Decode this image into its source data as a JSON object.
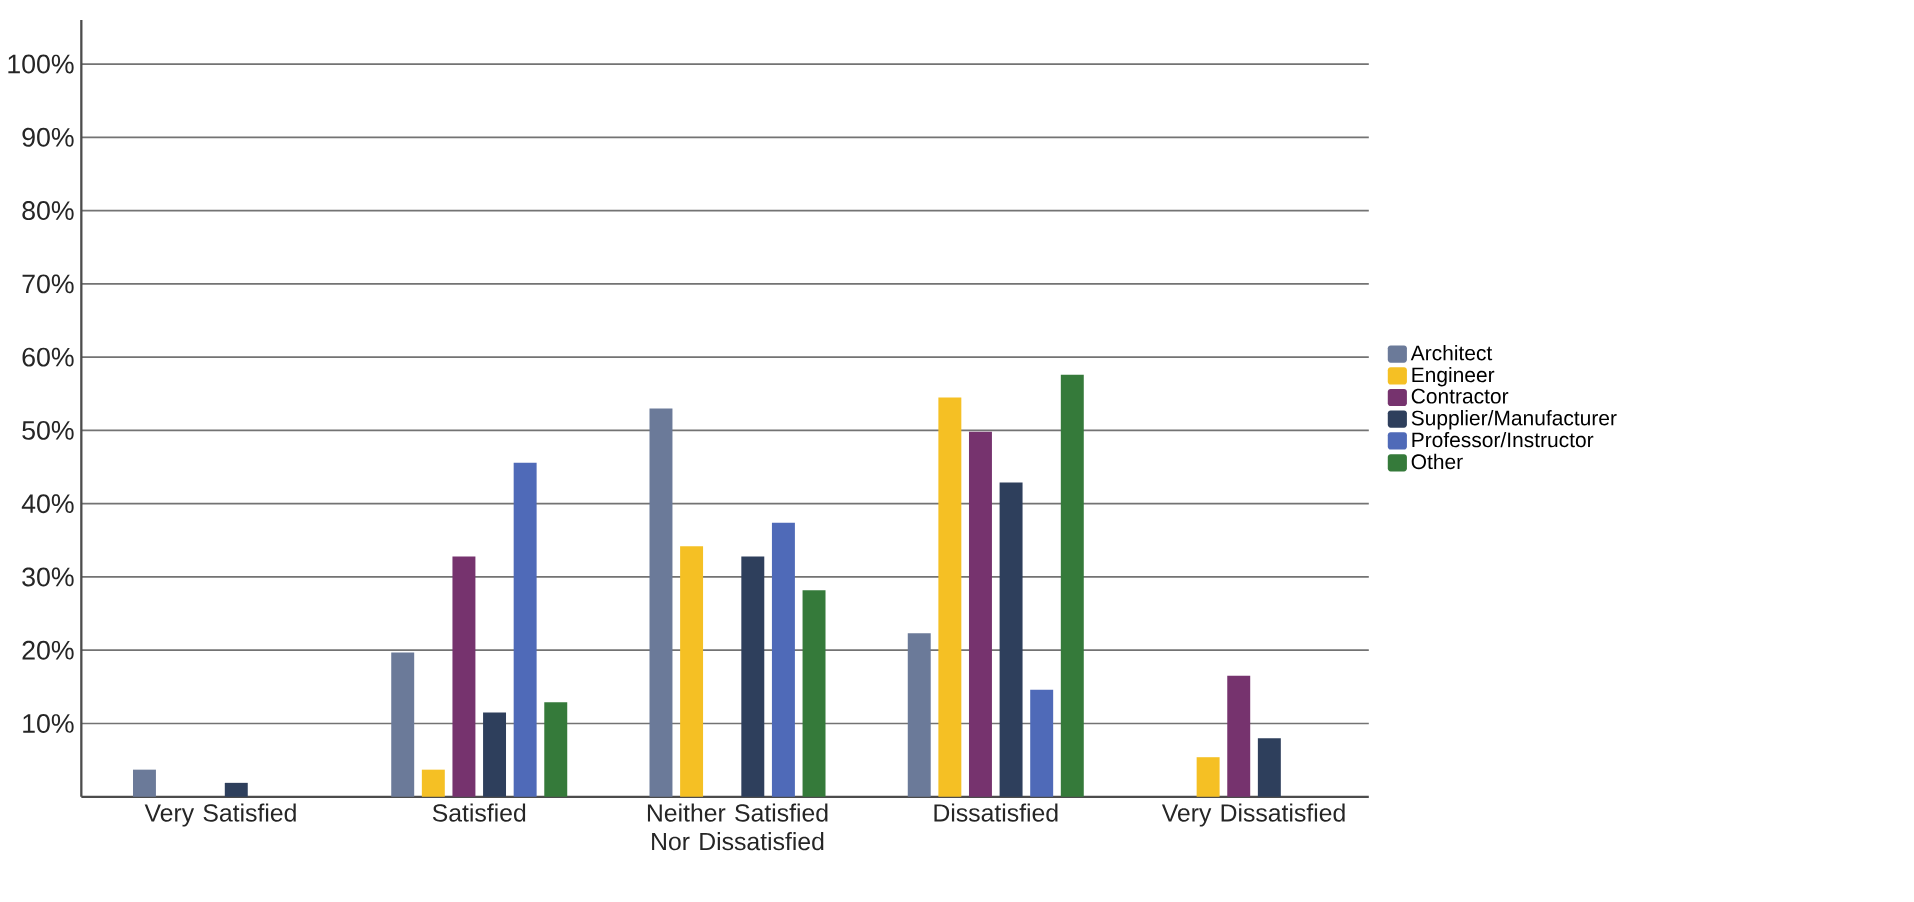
{
  "chart_data": {
    "type": "bar",
    "categories": [
      "Very Satisfied",
      "Satisfied",
      "Neither Satisfied Nor Dissatisfied",
      "Dissatisfied",
      "Very Dissatisfied"
    ],
    "series": [
      {
        "name": "Architect",
        "color": "#6b7a99",
        "values": [
          3.7,
          19.7,
          53,
          22.3,
          null
        ]
      },
      {
        "name": "Engineer",
        "color": "#f5c024",
        "values": [
          null,
          3.7,
          34.2,
          54.5,
          5.4
        ]
      },
      {
        "name": "Contractor",
        "color": "#76336e",
        "values": [
          null,
          32.8,
          null,
          49.8,
          16.5
        ]
      },
      {
        "name": "Supplier/Manufacturer",
        "color": "#2e3f5c",
        "values": [
          1.9,
          11.5,
          32.8,
          42.9,
          8.0
        ]
      },
      {
        "name": "Professor/Instructor",
        "color": "#4f6ab8",
        "values": [
          null,
          45.6,
          37.4,
          14.6,
          null
        ]
      },
      {
        "name": "Other",
        "color": "#357a3a",
        "values": [
          null,
          12.9,
          28.2,
          57.6,
          null
        ]
      }
    ],
    "ylim": [
      0,
      106
    ],
    "yticks": [
      {
        "value": 10,
        "label": "10%"
      },
      {
        "value": 20,
        "label": "20%"
      },
      {
        "value": 30,
        "label": "30%"
      },
      {
        "value": 40,
        "label": "40%"
      },
      {
        "value": 50,
        "label": "50%"
      },
      {
        "value": 60,
        "label": "60%"
      },
      {
        "value": 70,
        "label": "70%"
      },
      {
        "value": 80,
        "label": "80%"
      },
      {
        "value": 90,
        "label": "90%"
      },
      {
        "value": 100,
        "label": "100%"
      }
    ],
    "grid": "y",
    "legend": "right"
  }
}
